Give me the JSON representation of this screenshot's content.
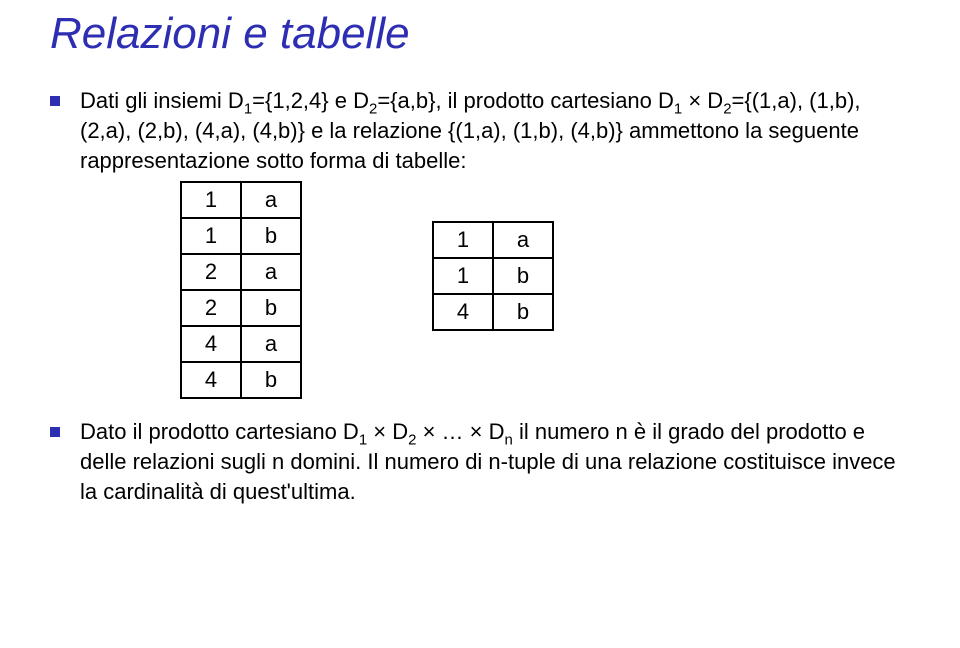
{
  "title": "Relazioni e tabelle",
  "bullet1_parts": {
    "p0": "Dati gli insiemi D",
    "p1": "={1,2,4} e D",
    "p2": "={a,b}, il prodotto cartesiano D",
    "p3": " × D",
    "p4": "={(1,a), (1,b), (2,a), (2,b), (4,a), (4,b)} e la relazione {(1,a), (1,b), (4,b)} ammettono la seguente rappresentazione sotto forma di tabelle:"
  },
  "subs": {
    "one": "1",
    "two": "2",
    "n": "n"
  },
  "table1": {
    "rows": [
      [
        "1",
        "a"
      ],
      [
        "1",
        "b"
      ],
      [
        "2",
        "a"
      ],
      [
        "2",
        "b"
      ],
      [
        "4",
        "a"
      ],
      [
        "4",
        "b"
      ]
    ]
  },
  "table2": {
    "rows": [
      [
        "1",
        "a"
      ],
      [
        "1",
        "b"
      ],
      [
        "4",
        "b"
      ]
    ]
  },
  "bullet2_parts": {
    "p0": "Dato il prodotto cartesiano D",
    "p1": " × D",
    "p2": " × … × D",
    "p3": " il numero n è il grado del prodotto e delle relazioni sugli n domini. Il numero di n-tuple di una relazione costituisce invece la cardinalità di quest'ultima."
  }
}
